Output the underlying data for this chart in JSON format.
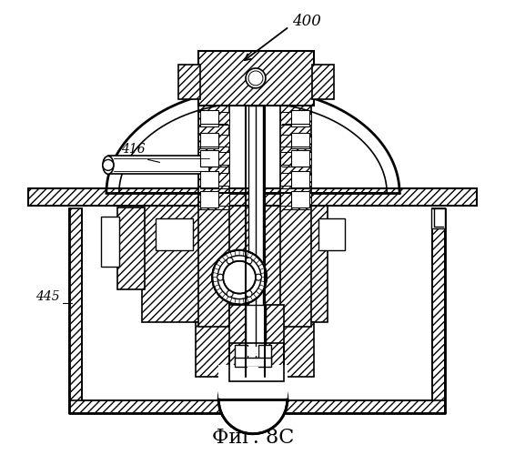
{
  "title": "Фиг. 8C",
  "label_400": "400",
  "label_416": "416",
  "label_445": "445",
  "bg_color": "#ffffff",
  "line_color": "#000000",
  "figsize": [
    5.55,
    5.0
  ],
  "dpi": 100
}
